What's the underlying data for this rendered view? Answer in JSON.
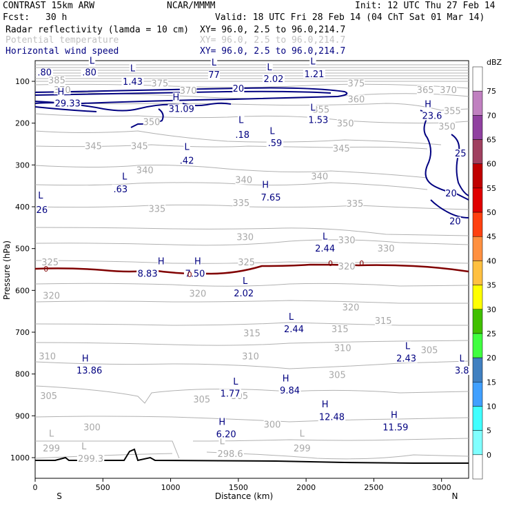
{
  "header": {
    "model": "CONTRAST 15km ARW",
    "center": "NCAR/MMMM",
    "init": "Init: 12 UTC Thu 27 Feb 14",
    "fcst_label": "Fcst:",
    "fcst_value": "30 h",
    "valid": "Valid: 18 UTC Fri 28 Feb 14 (04 ChT Sat 01 Mar 14)"
  },
  "fields": [
    {
      "name": "Radar reflectivity (lamda = 10 cm)",
      "xy": "XY=  96.0,  2.5 to  96.0,214.7",
      "style": "black"
    },
    {
      "name": "Potential temperature",
      "xy": "XY=  96.0,  2.5 to  96.0,214.7",
      "style": "gray"
    },
    {
      "name": "Horizontal wind speed",
      "xy": "XY=  96.0,  2.5 to  96.0,214.7",
      "style": "blue"
    }
  ],
  "chart_data": {
    "type": "cross-section",
    "xlabel": "Distance (km)",
    "ylabel": "Pressure (hPa)",
    "xlim": [
      0,
      3200
    ],
    "ylim": [
      1050,
      50
    ],
    "x_ticks": [
      "0",
      "500",
      "1000",
      "1500",
      "2000",
      "2500",
      "3000"
    ],
    "y_ticks": [
      "100",
      "200",
      "300",
      "400",
      "500",
      "600",
      "700",
      "800",
      "900",
      "1000"
    ],
    "left_end": "S",
    "right_end": "N",
    "colorbar": {
      "unit": "dBZ",
      "levels": [
        "75",
        "70",
        "65",
        "60",
        "55",
        "50",
        "45",
        "40",
        "35",
        "30",
        "25",
        "20",
        "15",
        "10",
        "5",
        "0"
      ],
      "colors": [
        "#ffffff",
        "#c080c0",
        "#9040a0",
        "#a04060",
        "#c00000",
        "#e00000",
        "#ff4010",
        "#ff9040",
        "#ffc040",
        "#ffff00",
        "#40c000",
        "#40ff40",
        "#4080c0",
        "#40a0ff",
        "#40ffff",
        "#80ffff",
        "#ffffff"
      ]
    },
    "theta_labels": [
      {
        "text": "385",
        "x": 160,
        "p": 105
      },
      {
        "text": "370",
        "x": 200,
        "p": 128
      },
      {
        "text": "375",
        "x": 920,
        "p": 112
      },
      {
        "text": "370",
        "x": 1130,
        "p": 130
      },
      {
        "text": "375",
        "x": 2370,
        "p": 112
      },
      {
        "text": "365",
        "x": 2880,
        "p": 128
      },
      {
        "text": "370",
        "x": 3050,
        "p": 128
      },
      {
        "text": "360",
        "x": 2370,
        "p": 150
      },
      {
        "text": "355",
        "x": 2110,
        "p": 175
      },
      {
        "text": "355",
        "x": 3080,
        "p": 178
      },
      {
        "text": "350",
        "x": 2290,
        "p": 208
      },
      {
        "text": "350",
        "x": 3040,
        "p": 215
      },
      {
        "text": "350",
        "x": 860,
        "p": 205
      },
      {
        "text": "345",
        "x": 430,
        "p": 262
      },
      {
        "text": "345",
        "x": 770,
        "p": 262
      },
      {
        "text": "345",
        "x": 2260,
        "p": 268
      },
      {
        "text": "340",
        "x": 810,
        "p": 320
      },
      {
        "text": "340",
        "x": 1540,
        "p": 343
      },
      {
        "text": "340",
        "x": 2100,
        "p": 335
      },
      {
        "text": "335",
        "x": 900,
        "p": 412
      },
      {
        "text": "335",
        "x": 1520,
        "p": 398
      },
      {
        "text": "335",
        "x": 2360,
        "p": 400
      },
      {
        "text": "330",
        "x": 1550,
        "p": 480
      },
      {
        "text": "330",
        "x": 2300,
        "p": 487
      },
      {
        "text": "330",
        "x": 2590,
        "p": 507
      },
      {
        "text": "325",
        "x": 110,
        "p": 540
      },
      {
        "text": "325",
        "x": 1560,
        "p": 540
      },
      {
        "text": "320",
        "x": 2300,
        "p": 550
      },
      {
        "text": "320",
        "x": 120,
        "p": 620
      },
      {
        "text": "320",
        "x": 1200,
        "p": 615
      },
      {
        "text": "320",
        "x": 2330,
        "p": 648
      },
      {
        "text": "315",
        "x": 2570,
        "p": 680
      },
      {
        "text": "315",
        "x": 2250,
        "p": 700
      },
      {
        "text": "315",
        "x": 1600,
        "p": 710
      },
      {
        "text": "310",
        "x": 2270,
        "p": 745
      },
      {
        "text": "310",
        "x": 90,
        "p": 765
      },
      {
        "text": "310",
        "x": 1590,
        "p": 765
      },
      {
        "text": "305",
        "x": 2910,
        "p": 750
      },
      {
        "text": "305",
        "x": 2230,
        "p": 810
      },
      {
        "text": "305",
        "x": 100,
        "p": 860
      },
      {
        "text": "305",
        "x": 1230,
        "p": 868
      },
      {
        "text": "305",
        "x": 1510,
        "p": 860
      },
      {
        "text": "300",
        "x": 420,
        "p": 935
      },
      {
        "text": "300",
        "x": 1750,
        "p": 928
      },
      {
        "text": "299",
        "x": 120,
        "p": 985
      },
      {
        "text": "299",
        "x": 1970,
        "p": 985
      },
      {
        "text": "299.3",
        "x": 410,
        "p": 1010
      },
      {
        "text": "298.6",
        "x": 1440,
        "p": 998
      },
      {
        "text": "L",
        "x": 120,
        "p": 950
      },
      {
        "text": "L",
        "x": 1970,
        "p": 950
      },
      {
        "text": "L",
        "x": 1380,
        "p": 968
      },
      {
        "text": "L",
        "x": 360,
        "p": 980
      }
    ],
    "wind_labels": [
      {
        "text": "L",
        "x": 420,
        "p": 58
      },
      {
        "text": ".80",
        "x": 400,
        "p": 86
      },
      {
        "text": ".80",
        "x": 70,
        "p": 86
      },
      {
        "text": "L",
        "x": 720,
        "p": 76
      },
      {
        "text": "1.43",
        "x": 720,
        "p": 108
      },
      {
        "text": "L",
        "x": 1320,
        "p": 62
      },
      {
        "text": "77",
        "x": 1320,
        "p": 92
      },
      {
        "text": "L",
        "x": 1730,
        "p": 74
      },
      {
        "text": "2.02",
        "x": 1760,
        "p": 102
      },
      {
        "text": "L",
        "x": 2050,
        "p": 60
      },
      {
        "text": "1.21",
        "x": 2060,
        "p": 90
      },
      {
        "text": "H",
        "x": 190,
        "p": 132
      },
      {
        "text": "29.33",
        "x": 240,
        "p": 160
      },
      {
        "text": "H",
        "x": 1040,
        "p": 145
      },
      {
        "text": "31.09",
        "x": 1080,
        "p": 173
      },
      {
        "text": "20",
        "x": 1500,
        "p": 125
      },
      {
        "text": "L",
        "x": 2050,
        "p": 170
      },
      {
        "text": "1.53",
        "x": 2090,
        "p": 200
      },
      {
        "text": "L",
        "x": 1520,
        "p": 200
      },
      {
        "text": ".18",
        "x": 1530,
        "p": 235
      },
      {
        "text": "L",
        "x": 1750,
        "p": 226
      },
      {
        "text": ".59",
        "x": 1770,
        "p": 255
      },
      {
        "text": "H",
        "x": 2900,
        "p": 162
      },
      {
        "text": "23.6",
        "x": 2930,
        "p": 190
      },
      {
        "text": "25",
        "x": 3140,
        "p": 280
      },
      {
        "text": "20",
        "x": 3070,
        "p": 375
      },
      {
        "text": "20",
        "x": 3100,
        "p": 442
      },
      {
        "text": "L",
        "x": 1120,
        "p": 264
      },
      {
        "text": ".42",
        "x": 1120,
        "p": 297
      },
      {
        "text": "L",
        "x": 660,
        "p": 335
      },
      {
        "text": ".63",
        "x": 630,
        "p": 365
      },
      {
        "text": "H",
        "x": 1700,
        "p": 355
      },
      {
        "text": "7.65",
        "x": 1740,
        "p": 385
      },
      {
        "text": "L",
        "x": 40,
        "p": 380
      },
      {
        "text": "26",
        "x": 50,
        "p": 415
      },
      {
        "text": "L",
        "x": 2140,
        "p": 478
      },
      {
        "text": "2.44",
        "x": 2140,
        "p": 507
      },
      {
        "text": "H",
        "x": 930,
        "p": 538
      },
      {
        "text": "8.83",
        "x": 830,
        "p": 567
      },
      {
        "text": "H",
        "x": 1200,
        "p": 538
      },
      {
        "text": "7.50",
        "x": 1180,
        "p": 567
      },
      {
        "text": "L",
        "x": 1550,
        "p": 585
      },
      {
        "text": "2.02",
        "x": 1540,
        "p": 614
      },
      {
        "text": "L",
        "x": 1890,
        "p": 670
      },
      {
        "text": "2.44",
        "x": 1910,
        "p": 700
      },
      {
        "text": "L",
        "x": 2750,
        "p": 740
      },
      {
        "text": "2.43",
        "x": 2740,
        "p": 770
      },
      {
        "text": "L",
        "x": 3150,
        "p": 770
      },
      {
        "text": "3.8",
        "x": 3150,
        "p": 799
      },
      {
        "text": "H",
        "x": 370,
        "p": 770
      },
      {
        "text": "13.86",
        "x": 400,
        "p": 799
      },
      {
        "text": "L",
        "x": 1480,
        "p": 825
      },
      {
        "text": "1.77",
        "x": 1440,
        "p": 854
      },
      {
        "text": "H",
        "x": 1850,
        "p": 818
      },
      {
        "text": "9.84",
        "x": 1880,
        "p": 847
      },
      {
        "text": "H",
        "x": 2140,
        "p": 880
      },
      {
        "text": "12.48",
        "x": 2190,
        "p": 910
      },
      {
        "text": "H",
        "x": 2650,
        "p": 905
      },
      {
        "text": "11.59",
        "x": 2660,
        "p": 935
      },
      {
        "text": "H",
        "x": 1380,
        "p": 922
      },
      {
        "text": "6.20",
        "x": 1410,
        "p": 951
      }
    ],
    "zero_labels": [
      {
        "text": "0",
        "x": 80,
        "p": 555
      },
      {
        "text": "0",
        "x": 1140,
        "p": 568
      },
      {
        "text": "0",
        "x": 2180,
        "p": 542
      },
      {
        "text": "0",
        "x": 2410,
        "p": 542
      }
    ]
  }
}
